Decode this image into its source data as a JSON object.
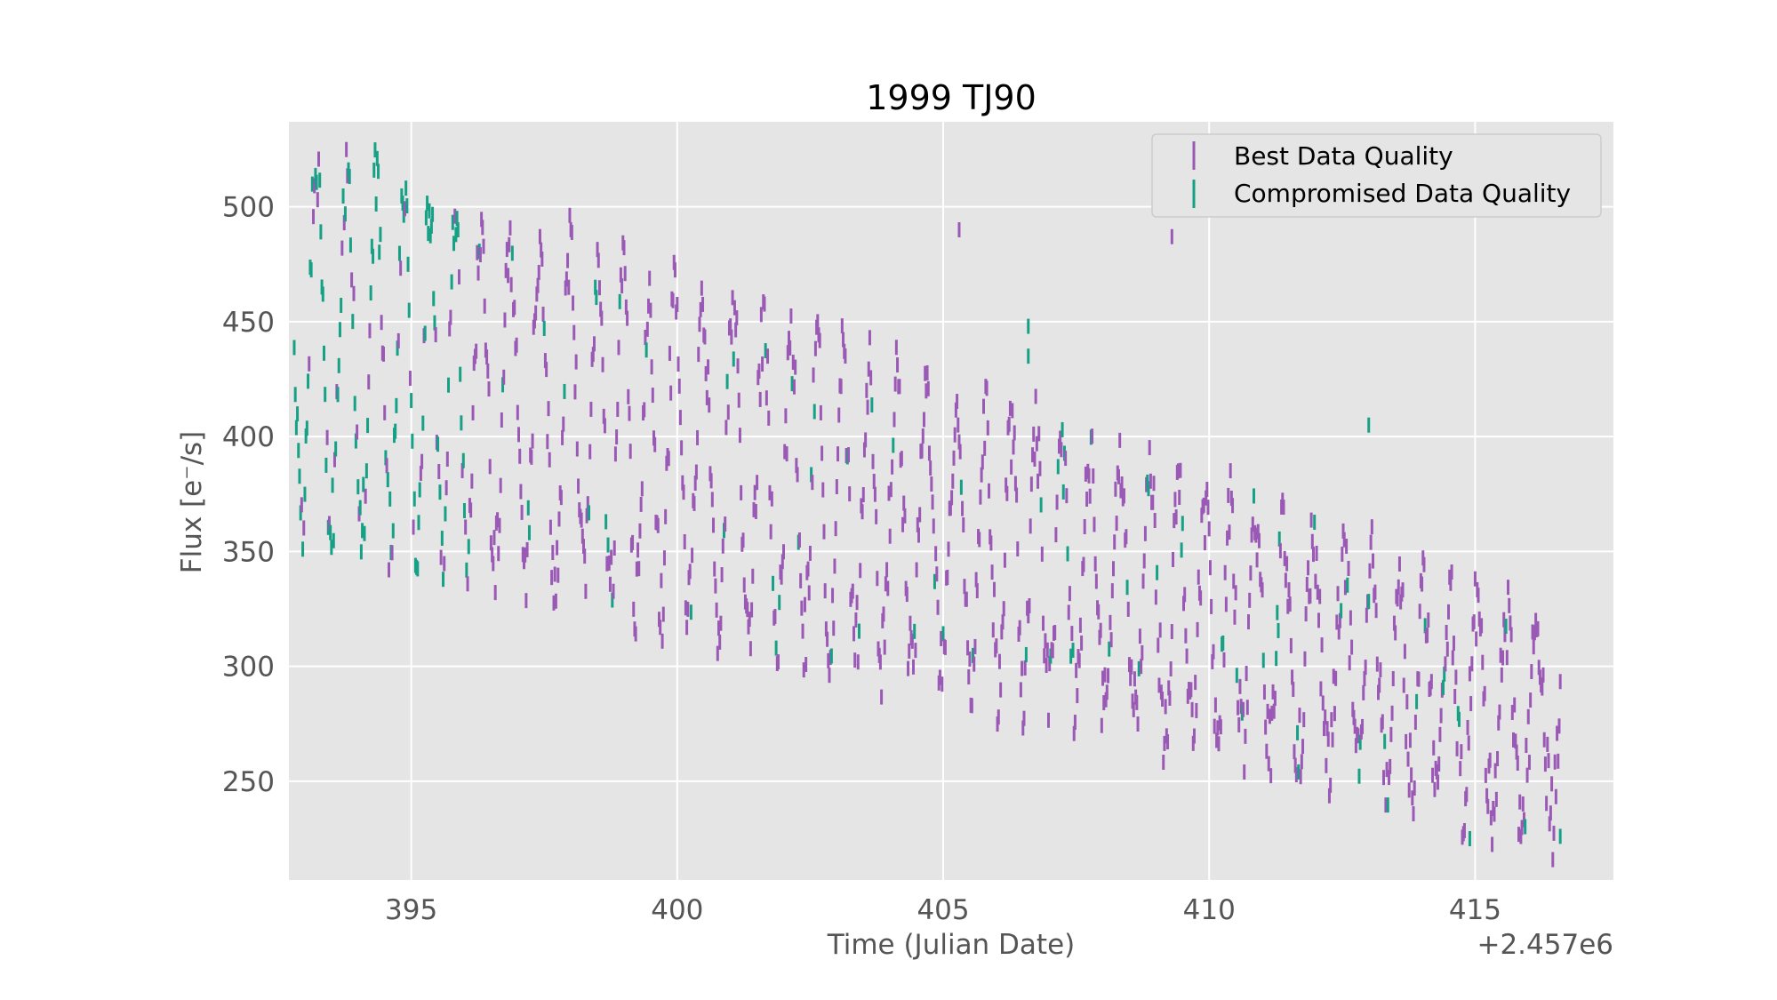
{
  "chart_data": {
    "type": "scatter",
    "title": "1999 TJ90",
    "xlabel": "Time (Julian Date)",
    "ylabel": "Flux [e$^-$/s]",
    "ylabel_display": "Flux [e⁻/s]",
    "x_offset_label": "+2.457e6",
    "xlim": [
      392.7,
      417.6
    ],
    "ylim": [
      207,
      537
    ],
    "xticks": [
      395,
      400,
      405,
      410,
      415
    ],
    "yticks": [
      250,
      300,
      350,
      400,
      450,
      500
    ],
    "grid": true,
    "legend_position": "upper right",
    "legend": [
      {
        "label": "Best Data Quality",
        "color": "#9b59b6"
      },
      {
        "label": "Compromised Data Quality",
        "color": "#16a085"
      }
    ],
    "trend": {
      "x_start": 392.8,
      "x_end": 416.6,
      "center_start": 445,
      "center_end": 272,
      "half_amplitude_start": 80,
      "half_amplitude_end": 40,
      "period_days": 0.52
    },
    "outliers": [
      {
        "x": 405.3,
        "y": 490,
        "series": "best"
      },
      {
        "x": 409.3,
        "y": 487,
        "series": "best"
      },
      {
        "x": 406.6,
        "y": 448,
        "series": "compromised"
      },
      {
        "x": 406.6,
        "y": 435,
        "series": "compromised"
      },
      {
        "x": 413.0,
        "y": 405,
        "series": "compromised"
      },
      {
        "x": 414.9,
        "y": 225,
        "series": "compromised"
      },
      {
        "x": 416.6,
        "y": 226,
        "series": "compromised"
      }
    ],
    "series": [
      {
        "name": "Best Data Quality",
        "color": "#9b59b6",
        "marker": "vertical errorbar"
      },
      {
        "name": "Compromised Data Quality",
        "color": "#16a085",
        "marker": "vertical errorbar"
      }
    ]
  }
}
